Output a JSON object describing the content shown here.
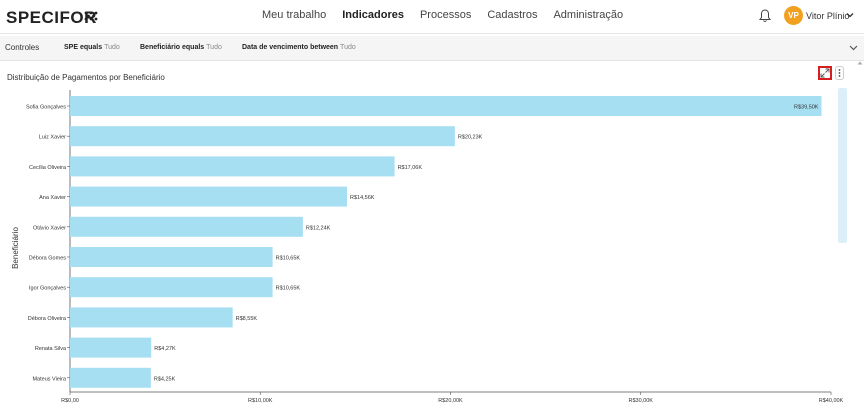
{
  "app": {
    "logo": "SPECIFOR",
    "nav": [
      "Meu trabalho",
      "Indicadores",
      "Processos",
      "Cadastros",
      "Administração"
    ],
    "active_nav": "Indicadores",
    "user_initials": "VP",
    "user_name": "Vitor Plínio"
  },
  "controls": {
    "title": "Controles",
    "filters": [
      {
        "label": "SPE equals",
        "value": "Tudo"
      },
      {
        "label": "Beneficiário equals",
        "value": "Tudo"
      },
      {
        "label": "Data de vencimento between",
        "value": "Tudo"
      }
    ]
  },
  "panel": {
    "title": "Distribuição de Pagamentos por Beneficiário",
    "expand_icon": "expand-icon",
    "more_icon": "more-vertical-icon"
  },
  "colors": {
    "bar": "#a6dff2",
    "accent_avatar": "#f2a01f",
    "highlight": "#d61e1e"
  },
  "chart_data": {
    "type": "bar",
    "orientation": "horizontal",
    "ylabel": "Beneficiário",
    "xlabel": "",
    "categories": [
      "Sofia Gonçalves",
      "Luiz Xavier",
      "Cecília Oliveira",
      "Ana Xavier",
      "Otávio Xavier",
      "Débora Gomes",
      "Igor Gonçalves",
      "Débora Oliveira",
      "Renata Silva",
      "Mateus Vieira"
    ],
    "values": [
      39500,
      20230,
      17060,
      14560,
      12240,
      10650,
      10650,
      8550,
      4270,
      4250
    ],
    "data_labels": [
      "R$39,50K",
      "R$20,23K",
      "R$17,06K",
      "R$14,56K",
      "R$12,24K",
      "R$10,65K",
      "R$10,65K",
      "R$8,55K",
      "R$4,27K",
      "R$4,25K"
    ],
    "xlim": [
      0,
      40000
    ],
    "x_ticks": [
      0,
      10000,
      20000,
      30000,
      40000
    ],
    "x_tick_labels": [
      "R$0,00",
      "R$10,00K",
      "R$20,00K",
      "R$30,00K",
      "R$40,00K"
    ],
    "grid": false
  }
}
